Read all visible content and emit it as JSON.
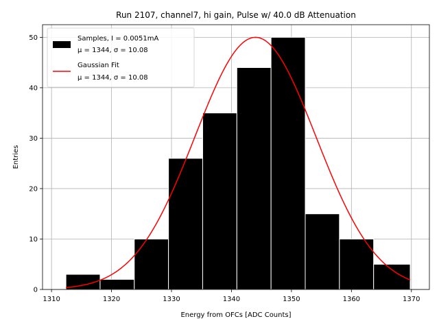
{
  "chart_data": {
    "type": "histogram",
    "title": "Run 2107, channel7, hi gain, Pulse w/ 40.0 dB Attenuation",
    "xlabel": "Energy from OFCs [ADC Counts]",
    "ylabel": "Entries",
    "xlim": [
      1308.5,
      1373
    ],
    "ylim": [
      0,
      52.5
    ],
    "xticks": [
      1310,
      1320,
      1330,
      1340,
      1350,
      1360,
      1370
    ],
    "yticks": [
      0,
      10,
      20,
      30,
      40,
      50
    ],
    "grid": true,
    "legend_position": "top-left",
    "bins": [
      {
        "x0": 1312.4,
        "x1": 1318.1,
        "count": 3
      },
      {
        "x0": 1318.1,
        "x1": 1323.8,
        "count": 2
      },
      {
        "x0": 1323.8,
        "x1": 1329.5,
        "count": 10
      },
      {
        "x0": 1329.5,
        "x1": 1335.2,
        "count": 26
      },
      {
        "x0": 1335.2,
        "x1": 1340.9,
        "count": 35
      },
      {
        "x0": 1340.9,
        "x1": 1346.6,
        "count": 44
      },
      {
        "x0": 1346.6,
        "x1": 1352.3,
        "count": 50
      },
      {
        "x0": 1352.3,
        "x1": 1358.0,
        "count": 15
      },
      {
        "x0": 1358.0,
        "x1": 1363.7,
        "count": 10
      },
      {
        "x0": 1363.7,
        "x1": 1369.8,
        "count": 5
      }
    ],
    "fit": {
      "amplitude": 50,
      "mu": 1344,
      "sigma": 10.08,
      "x_range": [
        1312.4,
        1369.8
      ]
    },
    "legend": [
      {
        "label_line1": "Samples, I = 0.0051mA",
        "label_line2": "μ = 1344, σ = 10.08",
        "color": "#000000",
        "kind": "patch"
      },
      {
        "label_line1": "Gaussian Fit",
        "label_line2": "μ = 1344, σ = 10.08",
        "color": "#ff0000",
        "kind": "line"
      }
    ],
    "colors": {
      "bars": "#000000",
      "fit": "#ff0000"
    }
  }
}
